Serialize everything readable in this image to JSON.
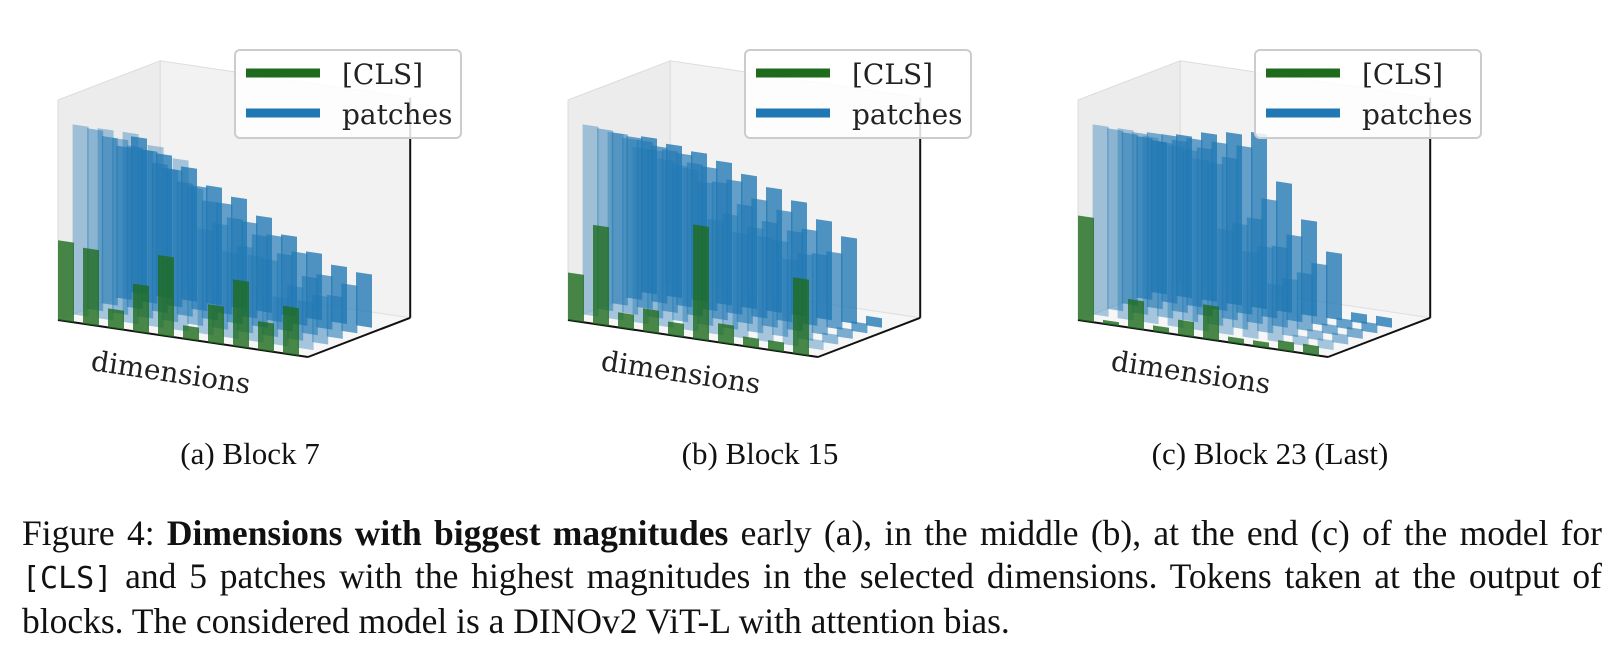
{
  "colors": {
    "cls": "#1e6b1e",
    "patches": "#1f77b4"
  },
  "legend": {
    "cls_label": "[CLS]",
    "patches_label": "patches"
  },
  "axis_label": "dimensions",
  "chart_data": [
    {
      "type": "bar3d",
      "subcaption": "(a) Block 7",
      "xlabel": "dimensions",
      "series": [
        {
          "name": "[CLS]",
          "values": [
            0.42,
            0.4,
            0.1,
            0.25,
            0.42,
            0.07,
            0.2,
            0.35,
            0.15,
            0.25
          ]
        },
        {
          "name": "patches",
          "values": [
            1.0,
            1.0,
            1.0,
            0.95,
            0.9,
            0.55,
            0.45,
            0.45,
            0.25,
            0.25
          ]
        },
        {
          "name": "patches",
          "values": [
            0.95,
            0.92,
            0.88,
            0.8,
            0.72,
            0.55,
            0.45,
            0.4,
            0.28,
            0.25
          ]
        },
        {
          "name": "patches",
          "values": [
            0.88,
            0.85,
            0.78,
            0.7,
            0.62,
            0.55,
            0.48,
            0.4,
            0.3,
            0.22
          ]
        },
        {
          "name": "patches",
          "values": [
            0.8,
            0.8,
            0.72,
            0.65,
            0.58,
            0.5,
            0.45,
            0.38,
            0.28,
            0.25
          ]
        },
        {
          "name": "patches",
          "values": [
            0.82,
            0.75,
            0.7,
            0.62,
            0.58,
            0.5,
            0.42,
            0.35,
            0.3,
            0.28
          ]
        }
      ]
    },
    {
      "type": "bar3d",
      "subcaption": "(b) Block 15",
      "xlabel": "dimensions",
      "series": [
        {
          "name": "[CLS]",
          "values": [
            0.25,
            0.52,
            0.08,
            0.12,
            0.07,
            0.6,
            0.1,
            0.05,
            0.05,
            0.4
          ]
        },
        {
          "name": "patches",
          "values": [
            1.0,
            0.98,
            0.92,
            0.88,
            0.85,
            0.6,
            0.55,
            0.55,
            0.45,
            0.05
          ]
        },
        {
          "name": "patches",
          "values": [
            0.95,
            0.92,
            0.88,
            0.82,
            0.75,
            0.6,
            0.55,
            0.5,
            0.45,
            0.05
          ]
        },
        {
          "name": "patches",
          "values": [
            0.9,
            0.88,
            0.85,
            0.8,
            0.72,
            0.62,
            0.55,
            0.52,
            0.42,
            0.05
          ]
        },
        {
          "name": "patches",
          "values": [
            0.85,
            0.82,
            0.8,
            0.75,
            0.7,
            0.62,
            0.58,
            0.5,
            0.4,
            0.05
          ]
        },
        {
          "name": "patches",
          "values": [
            0.82,
            0.8,
            0.78,
            0.75,
            0.7,
            0.65,
            0.6,
            0.52,
            0.45,
            0.05
          ]
        }
      ]
    },
    {
      "type": "bar3d",
      "subcaption": "(c) Block 23 (Last)",
      "xlabel": "dimensions",
      "series": [
        {
          "name": "[CLS]",
          "values": [
            0.55,
            0.02,
            0.15,
            0.03,
            0.08,
            0.18,
            0.03,
            0.03,
            0.05,
            0.05
          ]
        },
        {
          "name": "patches",
          "values": [
            1.0,
            1.0,
            0.98,
            0.95,
            0.9,
            0.55,
            0.45,
            0.3,
            0.05,
            0.05
          ]
        },
        {
          "name": "patches",
          "values": [
            0.95,
            0.95,
            0.92,
            0.9,
            0.85,
            0.55,
            0.45,
            0.3,
            0.05,
            0.05
          ]
        },
        {
          "name": "patches",
          "values": [
            0.9,
            0.92,
            0.9,
            0.88,
            0.85,
            0.55,
            0.42,
            0.3,
            0.05,
            0.05
          ]
        },
        {
          "name": "patches",
          "values": [
            0.85,
            0.88,
            0.88,
            0.88,
            0.88,
            0.62,
            0.45,
            0.32,
            0.05,
            0.05
          ]
        },
        {
          "name": "patches",
          "values": [
            0.8,
            0.85,
            0.88,
            0.9,
            0.92,
            0.68,
            0.5,
            0.35,
            0.05,
            0.05
          ]
        }
      ]
    }
  ],
  "caption": {
    "lead": "Figure 4: ",
    "bold": "Dimensions with biggest magnitudes",
    "part1": " early (a), in the middle (b), at the end (c) of the model for ",
    "code": "[CLS]",
    "part2": " and 5 patches with the highest magnitudes in the selected dimensions. Tokens taken at the output of blocks. The considered model is a DINOv2 ViT-L with attention bias."
  }
}
